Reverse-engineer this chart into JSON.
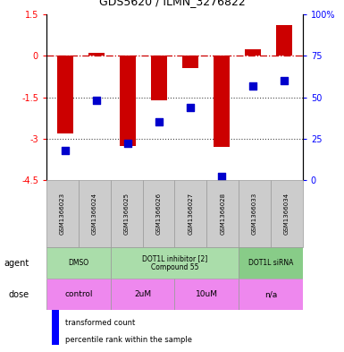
{
  "title": "GDS5620 / ILMN_3276822",
  "samples": [
    "GSM1366023",
    "GSM1366024",
    "GSM1366025",
    "GSM1366026",
    "GSM1366027",
    "GSM1366028",
    "GSM1366033",
    "GSM1366034"
  ],
  "bar_values": [
    -2.8,
    0.12,
    -3.25,
    -1.6,
    -0.45,
    -3.3,
    0.25,
    1.1
  ],
  "dot_values": [
    18,
    48,
    22,
    35,
    44,
    2,
    57,
    60
  ],
  "bar_color": "#cc0000",
  "dot_color": "#0000cc",
  "ylim_left": [
    -4.5,
    1.5
  ],
  "ylim_right": [
    0,
    100
  ],
  "yticks_left": [
    1.5,
    0,
    -1.5,
    -3,
    -4.5
  ],
  "yticks_left_labels": [
    "1.5",
    "0",
    "-1.5",
    "-3",
    "-4.5"
  ],
  "yticks_right": [
    100,
    75,
    50,
    25,
    0
  ],
  "yticks_right_labels": [
    "100%",
    "75",
    "50",
    "25",
    "0"
  ],
  "bar_width": 0.5,
  "sample_col_color": "#cccccc",
  "sample_col_edge": "#999999",
  "agent_configs": [
    {
      "start": 0,
      "end": 2,
      "label": "DMSO",
      "color": "#aaddaa"
    },
    {
      "start": 2,
      "end": 6,
      "label": "DOT1L inhibitor [2]\nCompound 55",
      "color": "#aaddaa"
    },
    {
      "start": 6,
      "end": 8,
      "label": "DOT1L siRNA",
      "color": "#88cc88"
    }
  ],
  "dose_configs": [
    {
      "start": 0,
      "end": 2,
      "label": "control",
      "color": "#ee88ee"
    },
    {
      "start": 2,
      "end": 4,
      "label": "2uM",
      "color": "#ee88ee"
    },
    {
      "start": 4,
      "end": 6,
      "label": "10uM",
      "color": "#ee88ee"
    },
    {
      "start": 6,
      "end": 8,
      "label": "n/a",
      "color": "#ee88ee"
    }
  ],
  "agent_label": "agent",
  "dose_label": "dose",
  "legend_bar_label": "transformed count",
  "legend_dot_label": "percentile rank within the sample"
}
